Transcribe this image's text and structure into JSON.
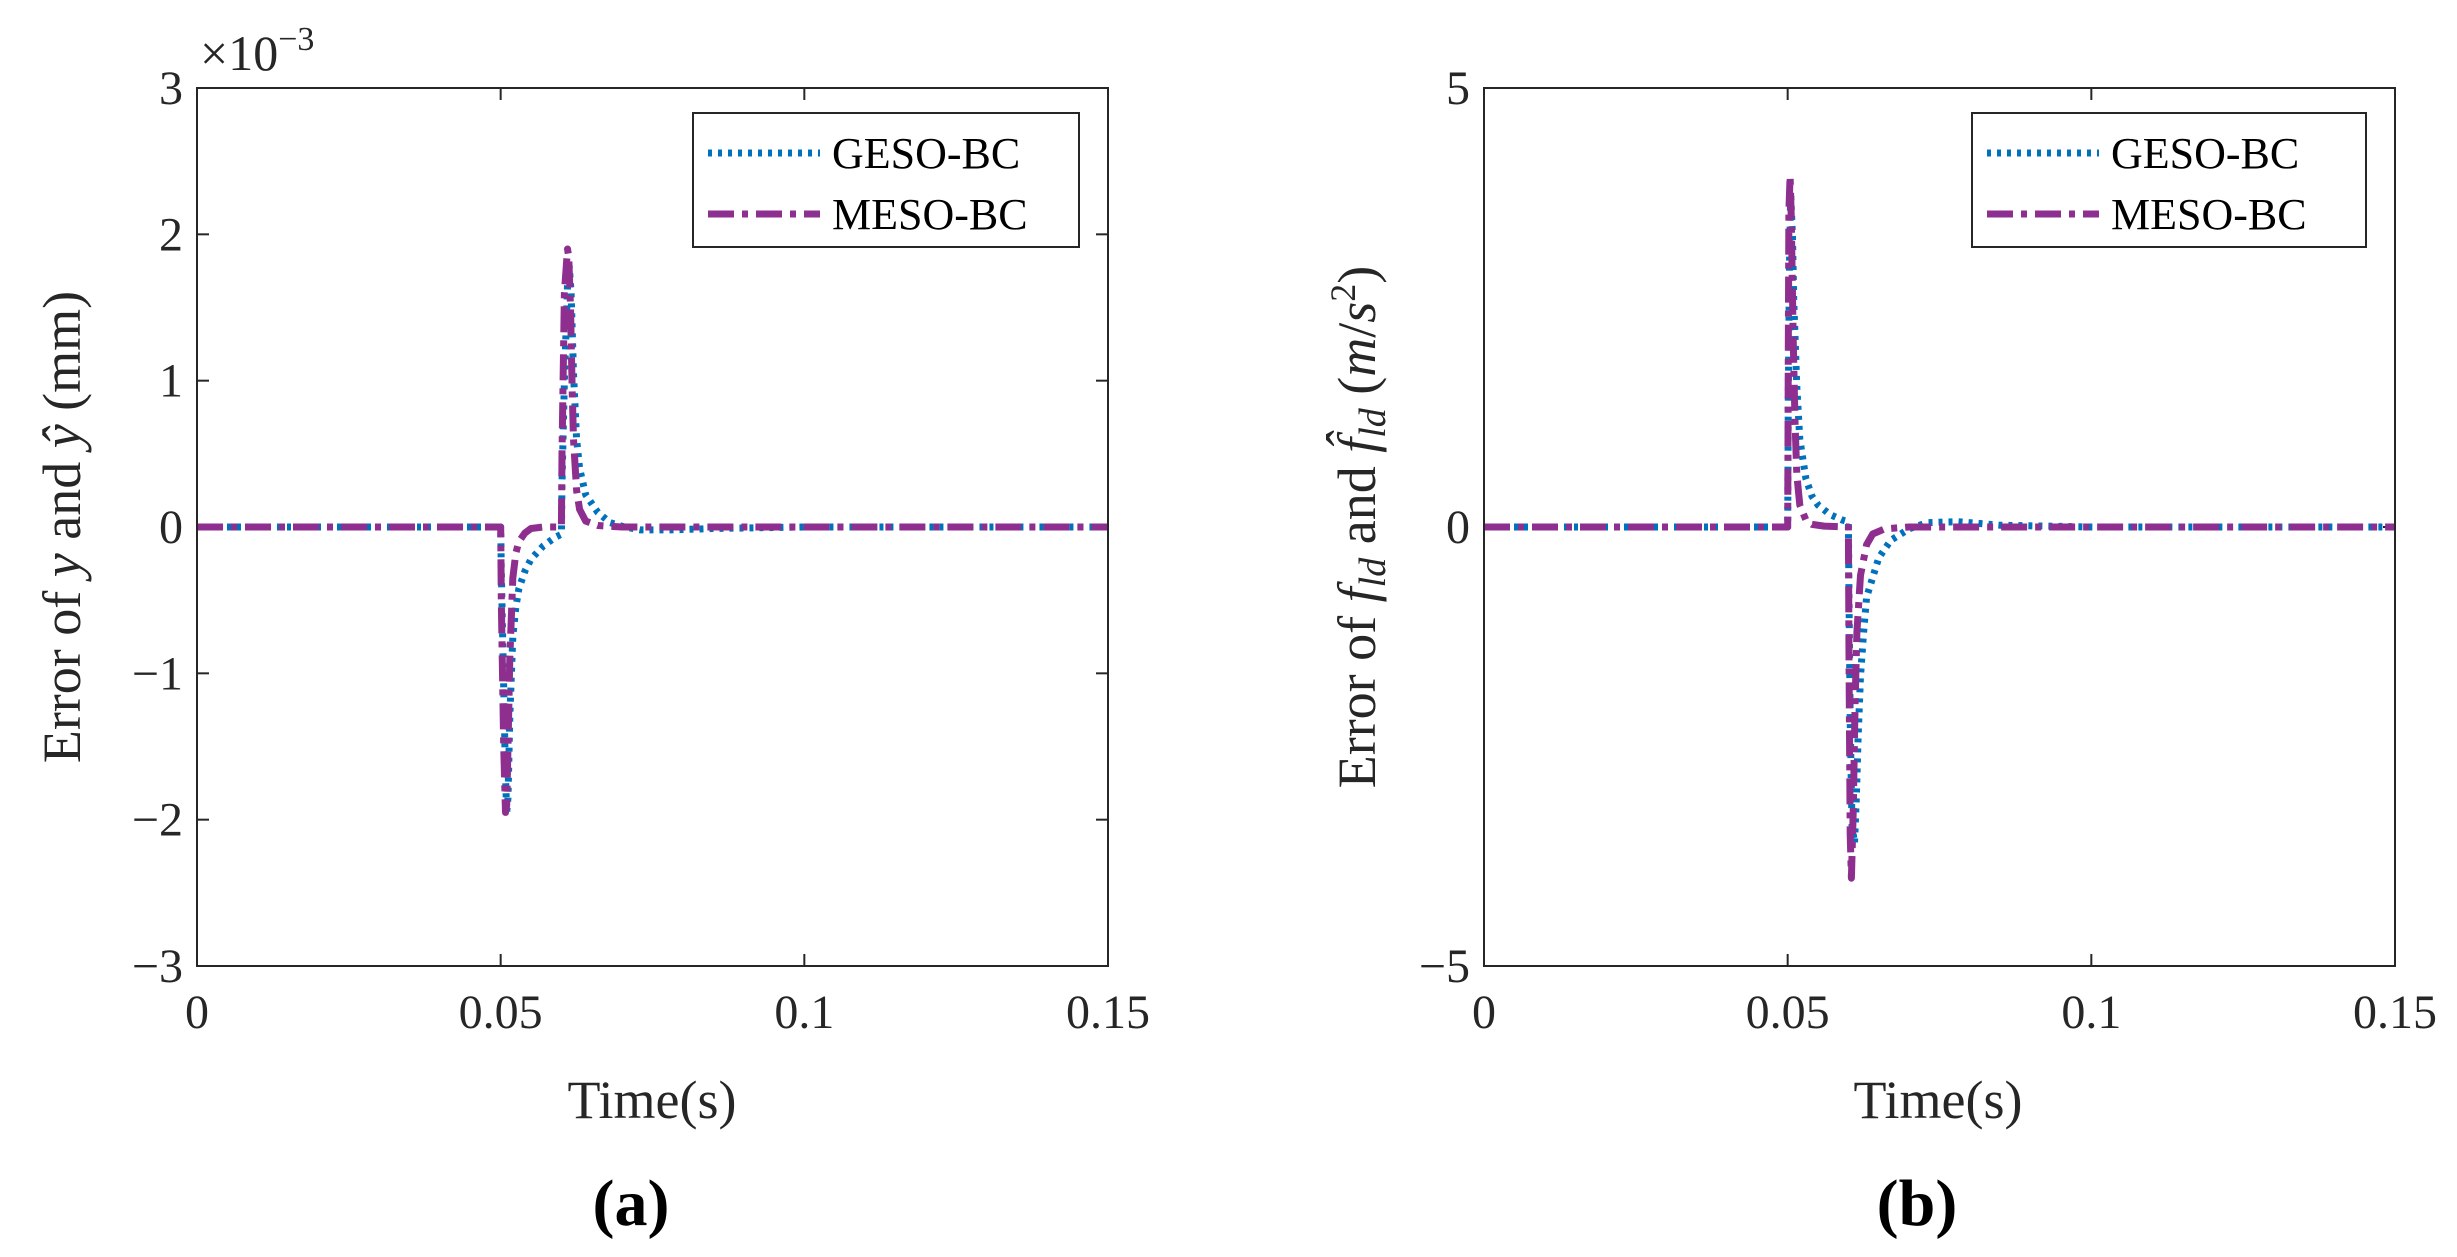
{
  "chart_data": [
    {
      "type": "line",
      "panel_label": "(a)",
      "xlabel": "Time(s)",
      "ylabel_parts": [
        "Error of ",
        "y",
        " and ",
        "ŷ",
        " (mm)"
      ],
      "y_multiplier": "×10",
      "y_multiplier_exp": "−3",
      "xlim": [
        0,
        0.15
      ],
      "ylim": [
        -3,
        3
      ],
      "x_ticks": [
        0,
        0.05,
        0.1,
        0.15
      ],
      "x_tick_labels": [
        "0",
        "0.05",
        "0.1",
        "0.15"
      ],
      "y_ticks": [
        3,
        2,
        1,
        0,
        -1,
        -2,
        -3
      ],
      "y_tick_labels": [
        "3",
        "2",
        "1",
        "0",
        "−1",
        "−2",
        "−3"
      ],
      "legend_position": "top-right",
      "series": [
        {
          "name": "GESO-BC",
          "color": "#0072BD",
          "style": "dotted",
          "x": [
            0,
            0.05,
            0.0501,
            0.0505,
            0.0508,
            0.051,
            0.0512,
            0.0515,
            0.052,
            0.0525,
            0.053,
            0.054,
            0.055,
            0.057,
            0.059,
            0.06,
            0.0601,
            0.0605,
            0.061,
            0.0613,
            0.0616,
            0.062,
            0.0625,
            0.063,
            0.064,
            0.066,
            0.068,
            0.07,
            0.073,
            0.078,
            0.085,
            0.1,
            0.15
          ],
          "y": [
            0,
            0,
            -0.3,
            -1.1,
            -1.7,
            -1.95,
            -1.85,
            -1.3,
            -0.75,
            -0.55,
            -0.42,
            -0.3,
            -0.22,
            -0.13,
            -0.07,
            -0.05,
            0.3,
            1.0,
            1.65,
            1.78,
            1.6,
            1.05,
            0.6,
            0.4,
            0.22,
            0.1,
            0.03,
            0.005,
            -0.02,
            -0.02,
            -0.01,
            0,
            0
          ]
        },
        {
          "name": "MESO-BC",
          "color": "#8E2E8F",
          "style": "dashdot",
          "x": [
            0,
            0.05,
            0.0501,
            0.0505,
            0.0508,
            0.051,
            0.0512,
            0.0515,
            0.052,
            0.0525,
            0.053,
            0.054,
            0.055,
            0.057,
            0.06,
            0.0601,
            0.0605,
            0.061,
            0.0612,
            0.0615,
            0.0618,
            0.062,
            0.0625,
            0.063,
            0.064,
            0.066,
            0.07,
            0.1,
            0.15
          ],
          "y": [
            0,
            0,
            -0.5,
            -1.5,
            -1.95,
            -1.9,
            -1.5,
            -0.9,
            -0.35,
            -0.18,
            -0.1,
            -0.04,
            -0.01,
            0,
            0,
            0.5,
            1.6,
            1.9,
            1.85,
            1.5,
            0.9,
            0.6,
            0.25,
            0.12,
            0.04,
            0.01,
            0,
            0,
            0
          ]
        }
      ]
    },
    {
      "type": "line",
      "panel_label": "(b)",
      "xlabel": "Time(s)",
      "ylabel_parts": [
        "Error of ",
        "f",
        "ld",
        " and ",
        "f̂",
        "ld",
        " (",
        "m",
        "/",
        "s",
        "2",
        ")"
      ],
      "xlim": [
        0,
        0.15
      ],
      "ylim": [
        -5,
        5
      ],
      "x_ticks": [
        0,
        0.05,
        0.1,
        0.15
      ],
      "x_tick_labels": [
        "0",
        "0.05",
        "0.1",
        "0.15"
      ],
      "y_ticks": [
        5,
        0,
        -5
      ],
      "y_tick_labels": [
        "5",
        "0",
        "−5"
      ],
      "legend_position": "top-right",
      "series": [
        {
          "name": "GESO-BC",
          "color": "#0072BD",
          "style": "dotted",
          "x": [
            0,
            0.05,
            0.0501,
            0.0503,
            0.0505,
            0.0508,
            0.051,
            0.0515,
            0.052,
            0.053,
            0.054,
            0.055,
            0.057,
            0.059,
            0.06,
            0.0601,
            0.0603,
            0.0606,
            0.061,
            0.0613,
            0.0616,
            0.062,
            0.0625,
            0.063,
            0.065,
            0.067,
            0.07,
            0.073,
            0.078,
            0.085,
            0.1,
            0.15
          ],
          "y": [
            0,
            0,
            1.5,
            3.0,
            3.8,
            3.3,
            2.6,
            1.6,
            1.0,
            0.55,
            0.35,
            0.25,
            0.14,
            0.08,
            0.06,
            -0.8,
            -2.2,
            -3.4,
            -3.6,
            -3.1,
            -2.4,
            -1.7,
            -1.2,
            -0.8,
            -0.35,
            -0.15,
            -0.02,
            0.05,
            0.06,
            0.02,
            0,
            0
          ]
        },
        {
          "name": "MESO-BC",
          "color": "#8E2E8F",
          "style": "dashdot",
          "x": [
            0,
            0.05,
            0.0501,
            0.0502,
            0.0504,
            0.0506,
            0.0509,
            0.0512,
            0.0515,
            0.052,
            0.053,
            0.054,
            0.056,
            0.06,
            0.0601,
            0.0603,
            0.0605,
            0.0608,
            0.0611,
            0.0614,
            0.062,
            0.063,
            0.064,
            0.066,
            0.07,
            0.1,
            0.15
          ],
          "y": [
            0,
            0,
            2.0,
            3.6,
            4.0,
            3.5,
            2.2,
            1.2,
            0.6,
            0.25,
            0.08,
            0.03,
            0.01,
            0,
            -1.5,
            -3.5,
            -4.0,
            -3.2,
            -2.0,
            -1.2,
            -0.55,
            -0.2,
            -0.08,
            -0.02,
            0,
            0,
            0
          ]
        }
      ]
    }
  ]
}
